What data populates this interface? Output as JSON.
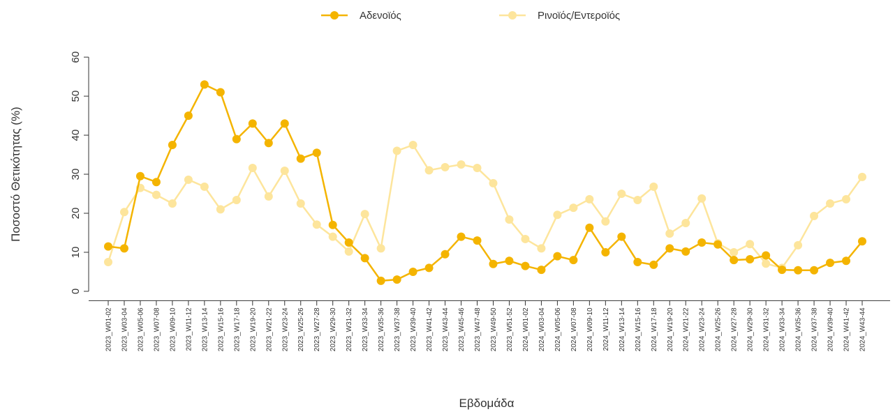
{
  "chart_data": {
    "type": "line",
    "x_label": "Εβδομάδα",
    "y_label": "Ποσοστό Θετικότητας (%)",
    "categories": [
      "2023_W01-02",
      "2023_W03-04",
      "2023_W05-06",
      "2023_W07-08",
      "2023_W09-10",
      "2023_W11-12",
      "2023_W13-14",
      "2023_W15-16",
      "2023_W17-18",
      "2023_W19-20",
      "2023_W21-22",
      "2023_W23-24",
      "2023_W25-26",
      "2023_W27-28",
      "2023_W29-30",
      "2023_W31-32",
      "2023_W33-34",
      "2023_W35-36",
      "2023_W37-38",
      "2023_W39-40",
      "2023_W41-42",
      "2023_W43-44",
      "2023_W45-46",
      "2023_W47-48",
      "2023_W49-50",
      "2023_W51-52",
      "2024_W01-02",
      "2024_W03-04",
      "2024_W05-06",
      "2024_W07-08",
      "2024_W09-10",
      "2024_W11-12",
      "2024_W13-14",
      "2024_W15-16",
      "2024_W17-18",
      "2024_W19-20",
      "2024_W21-22",
      "2024_W23-24",
      "2024_W25-26",
      "2024_W27-28",
      "2024_W29-30",
      "2024_W31-32",
      "2024_W33-34",
      "2024_W35-36",
      "2024_W37-38",
      "2024_W39-40",
      "2024_W41-42",
      "2024_W43-44"
    ],
    "series": [
      {
        "name": "Αδενοϊός",
        "color": "#f4b400",
        "values": [
          11.5,
          11,
          29.5,
          28,
          37.5,
          45,
          53,
          51,
          39,
          43,
          38,
          43,
          34,
          35.5,
          17,
          12.5,
          8.5,
          2.7,
          3,
          5,
          6,
          9.5,
          14,
          13,
          7,
          7.8,
          6.5,
          5.5,
          9,
          8,
          16.3,
          10,
          14,
          7.5,
          6.8,
          11,
          10.2,
          12.5,
          12,
          8,
          8.2,
          9.2,
          5.5,
          5.4,
          5.4,
          7.3,
          7.8,
          12.8
        ]
      },
      {
        "name": "Ρινοϊός/Εντεροϊός",
        "color": "#fde59c",
        "values": [
          7.5,
          20.3,
          26.5,
          24.7,
          22.5,
          28.6,
          26.8,
          21,
          23.4,
          31.6,
          24.3,
          30.9,
          22.5,
          17.1,
          14,
          10.2,
          19.8,
          11,
          36,
          37.5,
          31,
          31.8,
          32.5,
          31.6,
          27.7,
          18.4,
          13.4,
          11,
          19.6,
          21.4,
          23.6,
          17.9,
          25,
          23.4,
          26.8,
          14.8,
          17.5,
          23.8,
          12.3,
          10,
          12.1,
          7.1,
          6,
          11.8,
          19.3,
          22.5,
          23.6,
          29.3
        ]
      }
    ],
    "ylim": [
      -2.4,
      62.4
    ],
    "yticks": [
      0,
      10,
      20,
      30,
      40,
      50,
      60
    ],
    "legend": "top"
  }
}
